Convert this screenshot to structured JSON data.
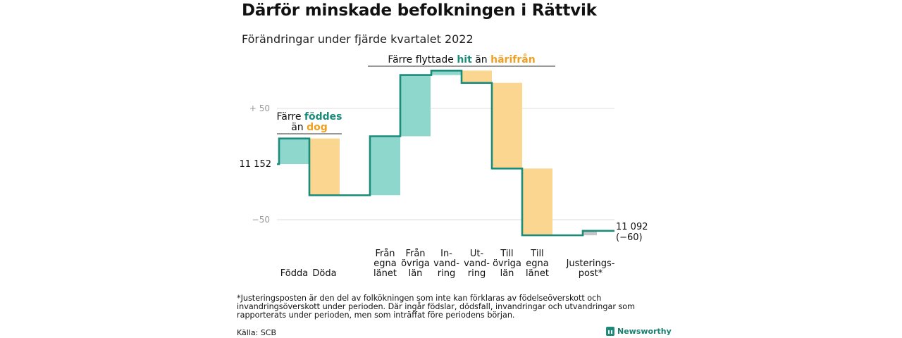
{
  "title": "Därför minskade befolkningen i Rättvik",
  "subtitle": "Förändringar under fjärde kvartalet 2022",
  "footnote": "*Justeringsposten är den del av folkökningen som inte kan förklaras av födelseöverskott och invandringsöverskott under perioden. Där ingår födslar, dödsfall, invandringar och utvandringar som rapporterats under perioden, men som inträffat före periodens början.",
  "source": "Källa: SCB",
  "brand": "Newsworthy",
  "colors": {
    "line": "#1a8c7a",
    "in": "#8ed7cc",
    "out": "#fbd690",
    "adjust": "#c4c4c4",
    "grid": "#dcdcdc",
    "in_text": "#1a8c7a",
    "out_text": "#f0a020"
  },
  "annotations": {
    "births_deaths": {
      "line1": "Färre",
      "line1_hl": "föddes",
      "line2": "än",
      "line2_hl": "dog"
    },
    "migration": {
      "prefix": "Färre flyttade",
      "hl1": "hit",
      "mid": "än",
      "hl2": "härifrån"
    }
  },
  "chart_data": {
    "type": "waterfall",
    "start_value": 11152,
    "start_label": "11 152",
    "end_value": 11092,
    "end_label": "11 092",
    "end_change_label": "(−60)",
    "y_ticks": [
      {
        "value": 50,
        "label": "+ 50"
      },
      {
        "value": -50,
        "label": "−50"
      }
    ],
    "ylim": [
      -50,
      75
    ],
    "categories": [
      {
        "lines": [
          "Födda"
        ],
        "change": 23,
        "kind": "in"
      },
      {
        "lines": [
          "Döda"
        ],
        "change": -51,
        "kind": "out"
      },
      {
        "lines": [
          "Från",
          "egna",
          "länet"
        ],
        "change": 53,
        "kind": "in"
      },
      {
        "lines": [
          "Från",
          "övriga",
          "län"
        ],
        "change": 55,
        "kind": "in"
      },
      {
        "lines": [
          "In-",
          "vand-",
          "ring"
        ],
        "change": 4,
        "kind": "in"
      },
      {
        "lines": [
          "Ut-",
          "vand-",
          "ring"
        ],
        "change": -11,
        "kind": "out"
      },
      {
        "lines": [
          "Till",
          "övriga",
          "län"
        ],
        "change": -77,
        "kind": "out"
      },
      {
        "lines": [
          "Till",
          "egna",
          "länet"
        ],
        "change": -60,
        "kind": "out"
      },
      {
        "lines": [
          "Justerings-",
          "post*"
        ],
        "change": 4,
        "kind": "adjust"
      }
    ]
  }
}
